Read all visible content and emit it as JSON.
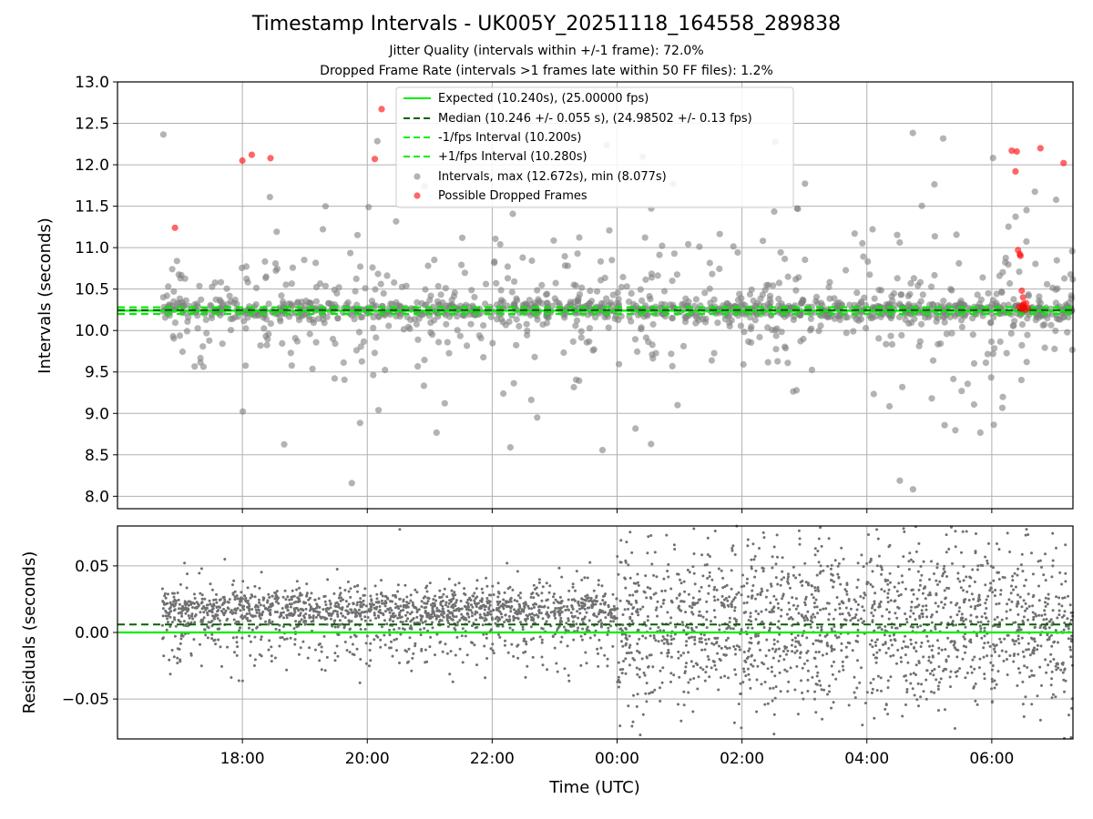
{
  "figure": {
    "title": "Timestamp Intervals - UK005Y_20251118_164558_289838",
    "subtitle_jitter": "Jitter Quality (intervals within +/-1 frame): 72.0%",
    "subtitle_dropped": "Dropped Frame Rate (intervals >1 frames late within 50 FF files): 1.2%"
  },
  "chart_data": [
    {
      "type": "scatter",
      "title": "Timestamp Intervals",
      "xlabel": "",
      "ylabel": "Intervals (seconds)",
      "x_unit": "hours since 16:00 UTC",
      "xlim": [
        0.0,
        15.3
      ],
      "ylim": [
        7.85,
        13.0
      ],
      "grid": true,
      "yticks": [
        8.0,
        8.5,
        9.0,
        9.5,
        10.0,
        10.5,
        11.0,
        11.5,
        12.0,
        12.5,
        13.0
      ],
      "ytick_labels": [
        "8.0",
        "8.5",
        "9.0",
        "9.5",
        "10.0",
        "10.5",
        "11.0",
        "11.5",
        "12.0",
        "12.5",
        "13.0"
      ],
      "xticks": [
        2,
        4,
        6,
        8,
        10,
        12,
        14
      ],
      "data_x_range": [
        0.72,
        15.3
      ],
      "expected": 10.24,
      "median": 10.246,
      "minus_fps": 10.2,
      "plus_fps": 10.28,
      "interval_max": 12.672,
      "interval_min": 8.077,
      "legend_position": "top-center",
      "legend": [
        {
          "label": "Expected (10.240s), (25.00000 fps)",
          "style": "solid",
          "color": "#00ee00"
        },
        {
          "label": "Median (10.246 +/- 0.055 s), (24.98502 +/- 0.13 fps)",
          "style": "dashed",
          "color": "#006400"
        },
        {
          "label": "-1/fps Interval (10.200s)",
          "style": "dashed",
          "color": "#00ee00"
        },
        {
          "label": "+1/fps Interval (10.280s)",
          "style": "dashed",
          "color": "#00ee00"
        },
        {
          "label": "Intervals, max (12.672s), min (8.077s)",
          "style": "marker",
          "color": "#808080"
        },
        {
          "label": "Possible Dropped Frames",
          "style": "marker",
          "color": "#ff0000"
        }
      ],
      "dropped_frames": [
        {
          "x": 0.92,
          "y": 11.24
        },
        {
          "x": 2.0,
          "y": 12.05
        },
        {
          "x": 2.15,
          "y": 12.12
        },
        {
          "x": 2.45,
          "y": 12.08
        },
        {
          "x": 4.12,
          "y": 12.07
        },
        {
          "x": 4.23,
          "y": 12.672
        },
        {
          "x": 14.32,
          "y": 12.17
        },
        {
          "x": 14.4,
          "y": 12.16
        },
        {
          "x": 14.38,
          "y": 11.92
        },
        {
          "x": 14.42,
          "y": 10.97
        },
        {
          "x": 14.45,
          "y": 10.92
        },
        {
          "x": 14.46,
          "y": 10.9
        },
        {
          "x": 14.48,
          "y": 10.48
        },
        {
          "x": 14.5,
          "y": 10.4
        },
        {
          "x": 14.55,
          "y": 10.33
        },
        {
          "x": 14.52,
          "y": 10.28
        },
        {
          "x": 14.47,
          "y": 10.26
        },
        {
          "x": 14.49,
          "y": 10.3
        },
        {
          "x": 14.53,
          "y": 10.25
        },
        {
          "x": 14.58,
          "y": 10.27
        },
        {
          "x": 14.44,
          "y": 10.29
        },
        {
          "x": 14.51,
          "y": 10.32
        },
        {
          "x": 14.78,
          "y": 12.2
        },
        {
          "x": 15.15,
          "y": 12.02
        }
      ]
    },
    {
      "type": "scatter",
      "title": "Residuals",
      "xlabel": "Time (UTC)",
      "ylabel": "Residuals (seconds)",
      "x_unit": "hours since 16:00 UTC",
      "xlim": [
        0.0,
        15.3
      ],
      "ylim": [
        -0.08,
        0.08
      ],
      "grid": true,
      "yticks": [
        -0.05,
        0.0,
        0.05
      ],
      "ytick_labels": [
        "−0.05",
        "0.00",
        "0.05"
      ],
      "xticks": [
        2,
        4,
        6,
        8,
        10,
        12,
        14
      ],
      "xtick_labels": [
        "18:00",
        "20:00",
        "22:00",
        "00:00",
        "02:00",
        "04:00",
        "06:00"
      ],
      "zero_line": 0.0,
      "median_residual": 0.006,
      "data_x_range": [
        0.72,
        15.3
      ]
    }
  ]
}
